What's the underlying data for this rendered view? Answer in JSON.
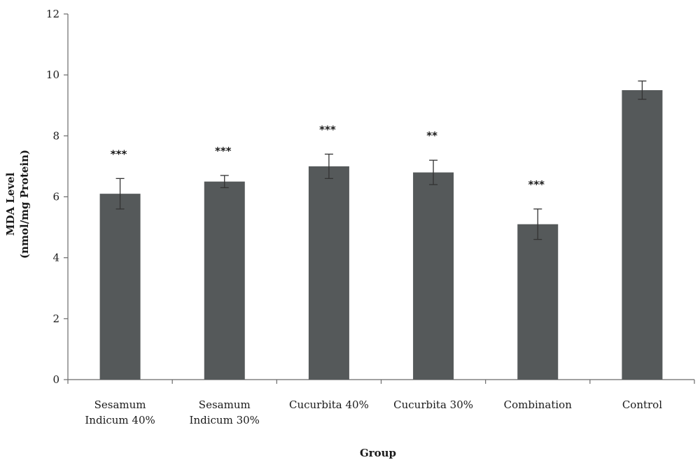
{
  "chart_data": {
    "type": "bar",
    "xlabel": "Group",
    "ylabel_line1": "MDA Level",
    "ylabel_line2": "(nmol/mg Protein)",
    "ylim": [
      0,
      12
    ],
    "yticks": [
      0,
      2,
      4,
      6,
      8,
      10,
      12
    ],
    "grid": false,
    "bar_color": "#55595a",
    "categories": [
      [
        "Sesamum",
        "Indicum 40%"
      ],
      [
        "Sesamum",
        "Indicum 30%"
      ],
      [
        "Cucurbita 40%"
      ],
      [
        "Cucurbita 30%"
      ],
      [
        "Combination"
      ],
      [
        "Control"
      ]
    ],
    "values": [
      6.1,
      6.5,
      7.0,
      6.8,
      5.1,
      9.5
    ],
    "errors": [
      0.5,
      0.2,
      0.4,
      0.4,
      0.5,
      0.3
    ],
    "significance": [
      "***",
      "***",
      "***",
      "**",
      "***",
      ""
    ]
  }
}
